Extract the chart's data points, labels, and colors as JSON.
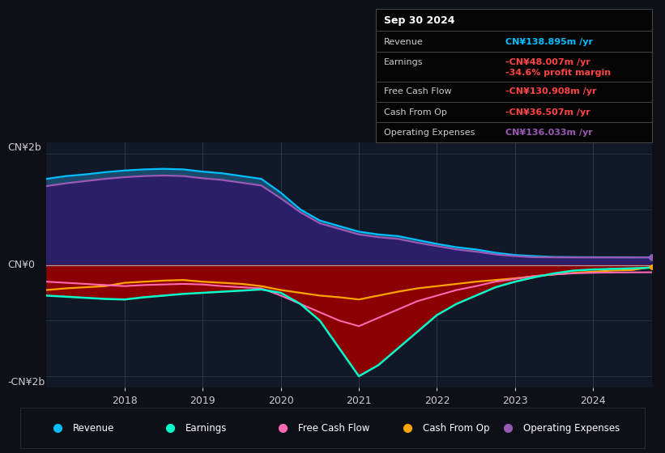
{
  "bg_color": "#0d1117",
  "chart_bg_left": "#0d2030",
  "chart_bg_right": "#111827",
  "ylabel_top": "CN¥2b",
  "ylabel_bottom": "-CN¥2b",
  "ylabel_mid": "CN¥0",
  "years": [
    2017.0,
    2017.25,
    2017.5,
    2017.75,
    2018.0,
    2018.25,
    2018.5,
    2018.75,
    2019.0,
    2019.25,
    2019.5,
    2019.75,
    2020.0,
    2020.25,
    2020.5,
    2020.75,
    2021.0,
    2021.25,
    2021.5,
    2021.75,
    2022.0,
    2022.25,
    2022.5,
    2022.75,
    2023.0,
    2023.25,
    2023.5,
    2023.75,
    2024.0,
    2024.25,
    2024.5,
    2024.75
  ],
  "revenue": [
    1.55,
    1.6,
    1.63,
    1.67,
    1.7,
    1.72,
    1.73,
    1.72,
    1.68,
    1.65,
    1.6,
    1.55,
    1.3,
    1.0,
    0.8,
    0.7,
    0.6,
    0.55,
    0.52,
    0.45,
    0.38,
    0.32,
    0.28,
    0.22,
    0.18,
    0.16,
    0.145,
    0.142,
    0.14,
    0.14,
    0.139,
    0.139
  ],
  "earnings": [
    -0.55,
    -0.57,
    -0.59,
    -0.61,
    -0.62,
    -0.58,
    -0.55,
    -0.52,
    -0.5,
    -0.48,
    -0.46,
    -0.44,
    -0.5,
    -0.7,
    -1.0,
    -1.5,
    -2.0,
    -1.8,
    -1.5,
    -1.2,
    -0.9,
    -0.7,
    -0.55,
    -0.4,
    -0.3,
    -0.22,
    -0.15,
    -0.1,
    -0.08,
    -0.07,
    -0.06,
    -0.048
  ],
  "free_cash_flow": [
    -0.3,
    -0.32,
    -0.34,
    -0.36,
    -0.38,
    -0.36,
    -0.35,
    -0.34,
    -0.35,
    -0.38,
    -0.4,
    -0.42,
    -0.55,
    -0.7,
    -0.85,
    -1.0,
    -1.1,
    -0.95,
    -0.8,
    -0.65,
    -0.55,
    -0.45,
    -0.38,
    -0.3,
    -0.25,
    -0.2,
    -0.17,
    -0.15,
    -0.14,
    -0.135,
    -0.132,
    -0.131
  ],
  "cash_from_op": [
    -0.45,
    -0.42,
    -0.4,
    -0.38,
    -0.32,
    -0.3,
    -0.28,
    -0.27,
    -0.3,
    -0.32,
    -0.34,
    -0.38,
    -0.45,
    -0.5,
    -0.55,
    -0.58,
    -0.62,
    -0.55,
    -0.48,
    -0.42,
    -0.38,
    -0.34,
    -0.3,
    -0.27,
    -0.24,
    -0.2,
    -0.17,
    -0.14,
    -0.12,
    -0.1,
    -0.09,
    -0.0365
  ],
  "op_expenses": [
    1.42,
    1.47,
    1.51,
    1.55,
    1.58,
    1.6,
    1.61,
    1.6,
    1.56,
    1.53,
    1.48,
    1.43,
    1.2,
    0.95,
    0.75,
    0.65,
    0.55,
    0.5,
    0.47,
    0.4,
    0.34,
    0.28,
    0.24,
    0.19,
    0.16,
    0.14,
    0.138,
    0.136,
    0.136,
    0.136,
    0.136,
    0.136
  ],
  "revenue_color": "#00bfff",
  "earnings_color": "#00ffcc",
  "free_cash_flow_color": "#ff69b4",
  "cash_from_op_color": "#ffa500",
  "op_expenses_color": "#9b59b6",
  "revenue_fill_color": "#1a4a6b",
  "earnings_fill_color": "#8b0000",
  "op_expenses_fill_color": "#2d1b69",
  "grid_color": "#2a3a4a",
  "zero_line_color": "#aaaaaa",
  "text_color": "#cccccc",
  "info_box": {
    "title": "Sep 30 2024",
    "revenue_label": "Revenue",
    "revenue_value": "CN¥138.895m /yr",
    "revenue_color": "#00bfff",
    "earnings_label": "Earnings",
    "earnings_value": "-CN¥48.007m /yr",
    "earnings_color": "#ff4444",
    "margin_value": "-34.6% profit margin",
    "margin_color": "#ff4444",
    "fcf_label": "Free Cash Flow",
    "fcf_value": "-CN¥130.908m /yr",
    "fcf_color": "#ff4444",
    "cashop_label": "Cash From Op",
    "cashop_value": "-CN¥36.507m /yr",
    "cashop_color": "#ff4444",
    "opex_label": "Operating Expenses",
    "opex_value": "CN¥136.033m /yr",
    "opex_color": "#9b59b6"
  },
  "legend_items": [
    {
      "label": "Revenue",
      "color": "#00bfff"
    },
    {
      "label": "Earnings",
      "color": "#00ffcc"
    },
    {
      "label": "Free Cash Flow",
      "color": "#ff69b4"
    },
    {
      "label": "Cash From Op",
      "color": "#ffa500"
    },
    {
      "label": "Operating Expenses",
      "color": "#9b59b6"
    }
  ]
}
